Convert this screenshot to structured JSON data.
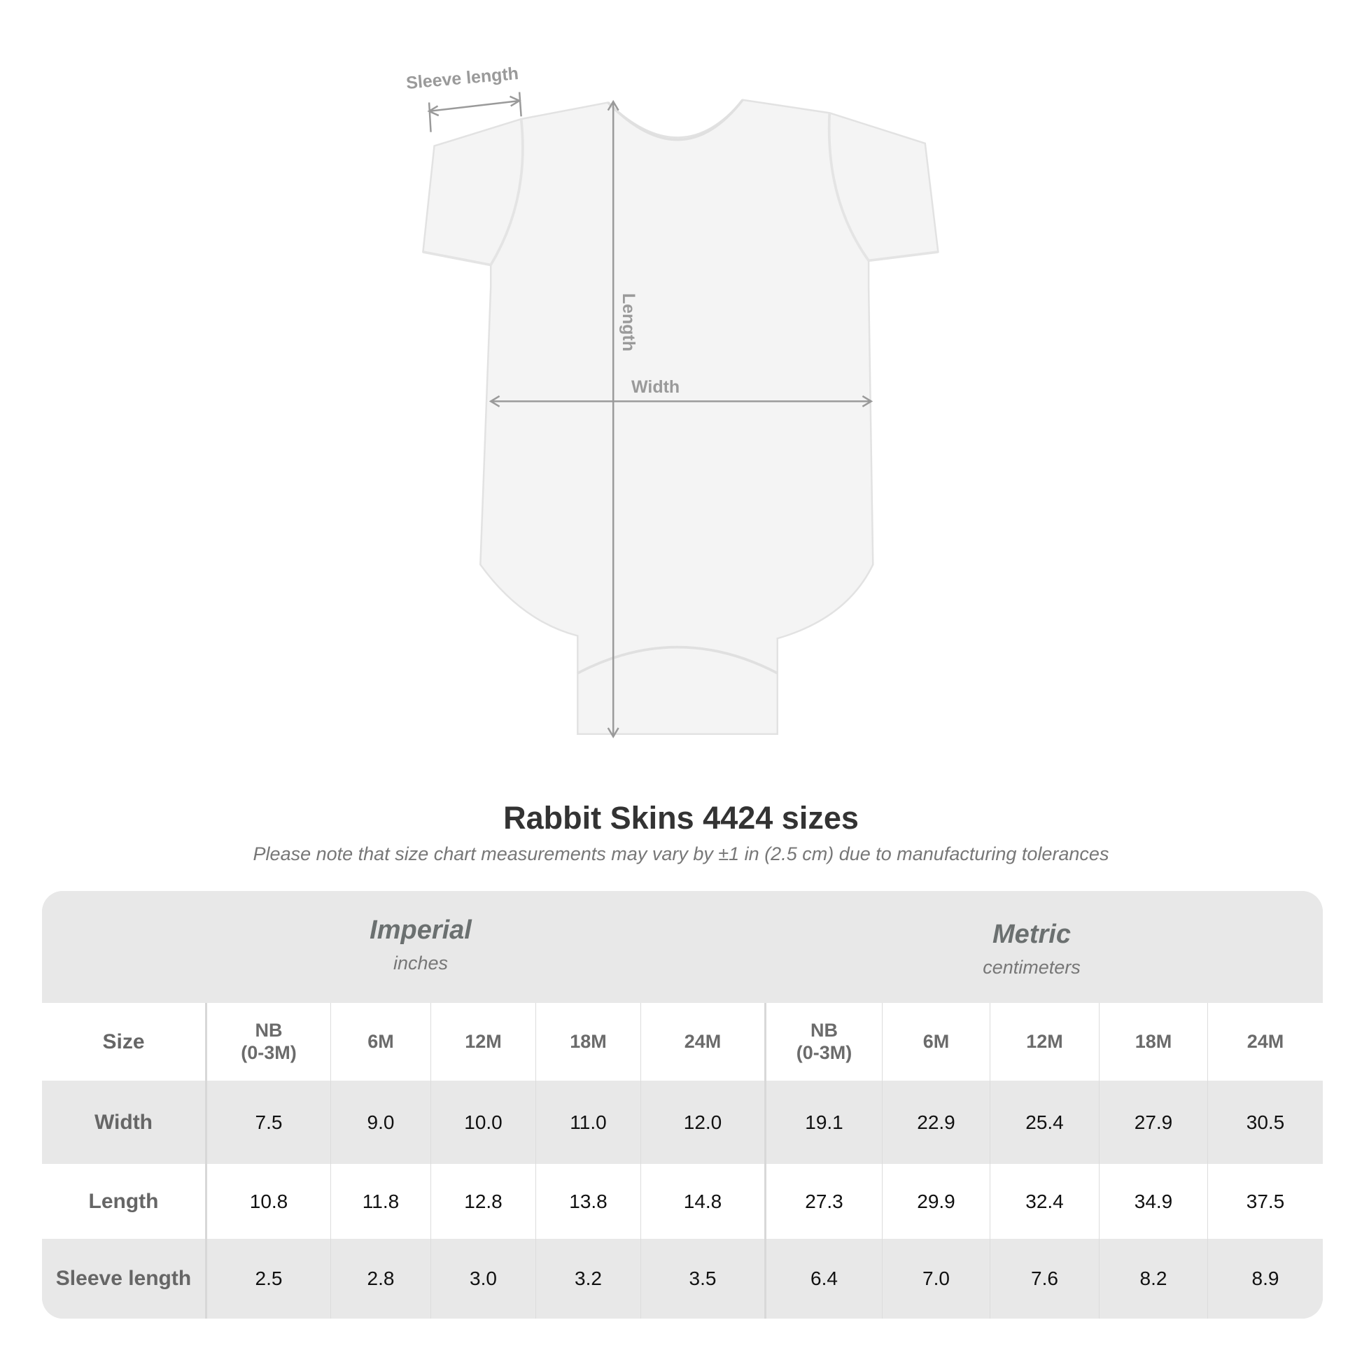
{
  "diagram": {
    "labels": {
      "sleeve": "Sleeve length",
      "length": "Length",
      "width": "Width"
    },
    "garment_color": "#f4f4f4",
    "line_color": "#9a9a9a"
  },
  "title": "Rabbit Skins 4424 sizes",
  "note": "Please note that size chart measurements may vary by ±1 in (2.5 cm) due to manufacturing tolerances",
  "table": {
    "imperial": {
      "name": "Imperial",
      "unit": "inches"
    },
    "metric": {
      "name": "Metric",
      "unit": "centimeters"
    },
    "size_label": "Size",
    "sizes": [
      "NB\n(0-3M)",
      "6M",
      "12M",
      "18M",
      "24M"
    ],
    "rows": [
      {
        "label": "Width",
        "imperial": [
          "7.5",
          "9.0",
          "10.0",
          "11.0",
          "12.0"
        ],
        "metric": [
          "19.1",
          "22.9",
          "25.4",
          "27.9",
          "30.5"
        ]
      },
      {
        "label": "Length",
        "imperial": [
          "10.8",
          "11.8",
          "12.8",
          "13.8",
          "14.8"
        ],
        "metric": [
          "27.3",
          "29.9",
          "32.4",
          "34.9",
          "37.5"
        ]
      },
      {
        "label": "Sleeve length",
        "imperial": [
          "2.5",
          "2.8",
          "3.0",
          "3.2",
          "3.5"
        ],
        "metric": [
          "6.4",
          "7.0",
          "7.6",
          "8.2",
          "8.9"
        ]
      }
    ]
  }
}
